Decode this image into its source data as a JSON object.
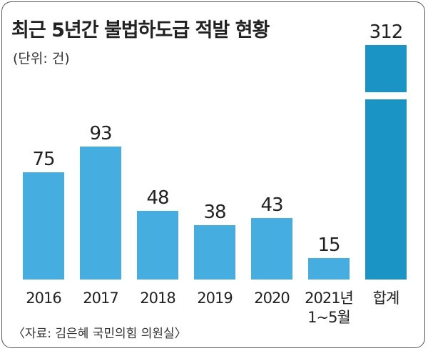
{
  "header": {
    "title": "최근 5년간 불법하도급 적발 현황",
    "unit": "(단위: 건)"
  },
  "footer": {
    "source": "〈자료: 김은혜 국민의힘 의원실〉"
  },
  "colors": {
    "bar": "#45ade0",
    "total_bar": "#1994c4"
  },
  "chart_data": {
    "type": "bar",
    "title": "최근 5년간 불법하도급 적발 현황",
    "unit": "(단위: 건)",
    "categories": [
      "2016",
      "2017",
      "2018",
      "2019",
      "2020",
      "2021년\n1~5월",
      "합계"
    ],
    "values": [
      75,
      93,
      48,
      38,
      43,
      15,
      312
    ],
    "axis_break_on": "합계",
    "grid": false
  }
}
